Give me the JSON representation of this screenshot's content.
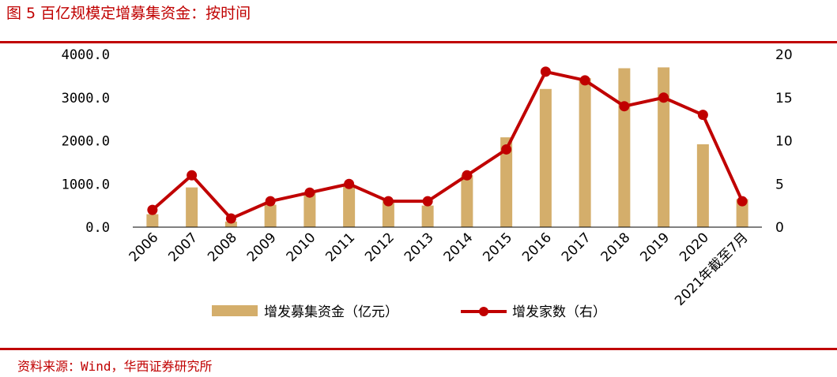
{
  "header": {
    "title": "图 5  百亿规模定增募集资金：按时间"
  },
  "footer": {
    "source": "资料来源：Wind，华西证券研究所"
  },
  "colors": {
    "accent": "#c00000",
    "bar": "#d4ae6b",
    "line": "#c00000"
  },
  "chart_data": {
    "type": "bar",
    "categories": [
      "2006",
      "2007",
      "2008",
      "2009",
      "2010",
      "2011",
      "2012",
      "2013",
      "2014",
      "2015",
      "2016",
      "2017",
      "2018",
      "2019",
      "2020",
      "2021年截至7月"
    ],
    "series": [
      {
        "name": "增发募集资金（亿元）",
        "type": "bar",
        "axis": "left",
        "values": [
          300,
          920,
          130,
          520,
          800,
          940,
          620,
          500,
          1200,
          2080,
          3200,
          3450,
          3680,
          3700,
          1920,
          650
        ]
      },
      {
        "name": "增发家数（右）",
        "type": "line",
        "axis": "right",
        "values": [
          2,
          6,
          1,
          3,
          4,
          5,
          3,
          3,
          6,
          9,
          18,
          17,
          14,
          15,
          13,
          3
        ]
      }
    ],
    "yleft": {
      "lim": [
        0,
        4000
      ],
      "ticks": [
        "0.0",
        "1000.0",
        "2000.0",
        "3000.0",
        "4000.0"
      ]
    },
    "yright": {
      "lim": [
        0,
        20
      ],
      "ticks": [
        "0",
        "5",
        "10",
        "15",
        "20"
      ]
    },
    "grid": false,
    "legend": "bottom"
  }
}
